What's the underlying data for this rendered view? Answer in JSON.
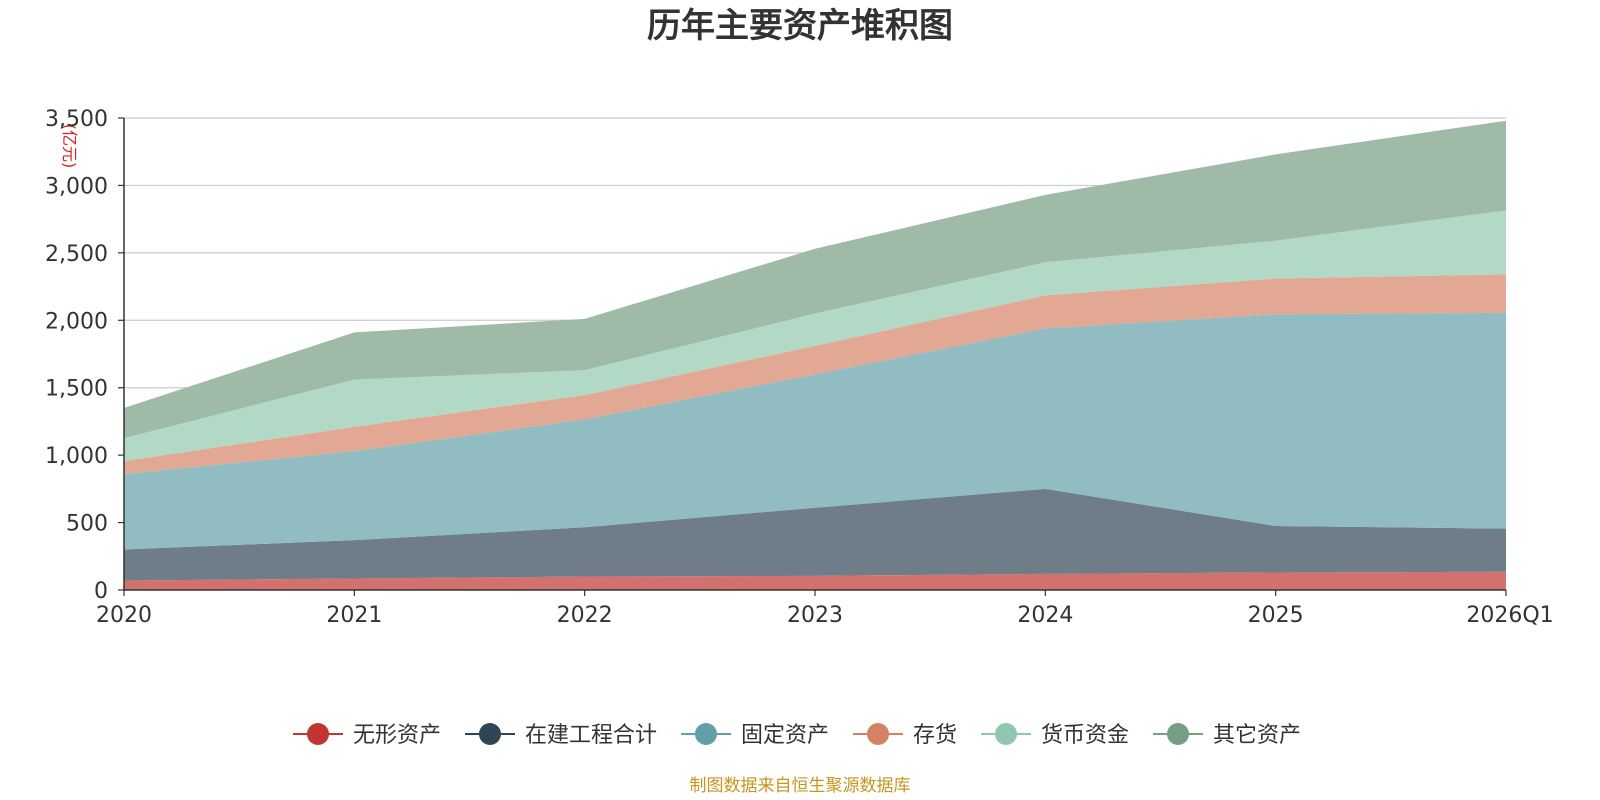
{
  "chart_data": {
    "type": "area",
    "stacked": true,
    "title": "历年主要资产堆积图",
    "ylabel": "亿元",
    "xlabel": "",
    "categories": [
      "2020",
      "2021",
      "2022",
      "2023",
      "2024",
      "2025",
      "2026Q1"
    ],
    "ylim": [
      0,
      3500
    ],
    "yticks": [
      0,
      500,
      1000,
      1500,
      2000,
      2500,
      3000,
      3500
    ],
    "ytick_labels": [
      "0",
      "500",
      "1,000",
      "1,500",
      "2,000",
      "2,500",
      "3,000",
      "3,500"
    ],
    "grid": true,
    "legend_position": "bottom",
    "series": [
      {
        "name": "无形资产",
        "color": "#c23531",
        "fill": "#d3716f",
        "values": [
          70,
          85,
          100,
          105,
          120,
          130,
          135
        ]
      },
      {
        "name": "在建工程合计",
        "color": "#2f4554",
        "fill": "#6e7d88",
        "values": [
          230,
          285,
          365,
          505,
          630,
          345,
          320
        ]
      },
      {
        "name": "固定资产",
        "color": "#61a0a8",
        "fill": "#91bcc2",
        "values": [
          560,
          660,
          800,
          990,
          1190,
          1570,
          1600
        ]
      },
      {
        "name": "存货",
        "color": "#d48265",
        "fill": "#e2a894",
        "values": [
          95,
          180,
          180,
          210,
          245,
          265,
          285
        ]
      },
      {
        "name": "货币资金",
        "color": "#91c7ae",
        "fill": "#b2d8c6",
        "values": [
          170,
          350,
          185,
          240,
          245,
          280,
          475
        ]
      },
      {
        "name": "其它资产",
        "color": "#749f83",
        "fill": "#9fbba8",
        "values": [
          225,
          350,
          380,
          480,
          500,
          640,
          665
        ]
      }
    ]
  },
  "source_note": "制图数据来自恒生聚源数据库"
}
